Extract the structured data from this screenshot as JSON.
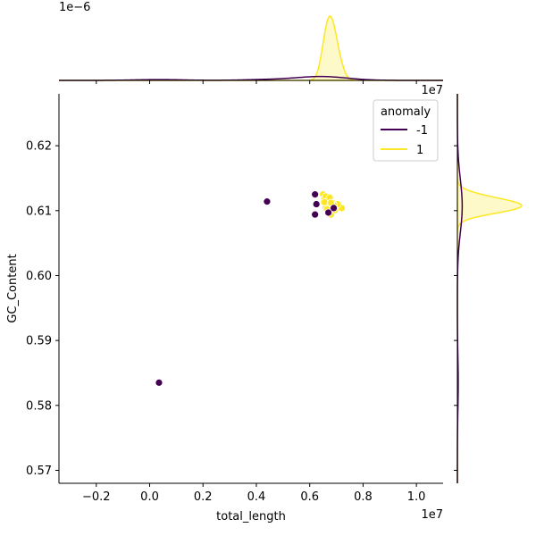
{
  "chart_data": {
    "type": "scatter",
    "title": "",
    "xlabel": "total_length",
    "ylabel": "GC_Content",
    "x_scale_label": "1e7",
    "y_scale_label": "0.62",
    "top_marginal_scale_label": "1e−6",
    "xlim": [
      -3400000,
      11000000
    ],
    "ylim": [
      0.568,
      0.628
    ],
    "x_ticks": [
      -2000000,
      0,
      2000000,
      4000000,
      6000000,
      8000000,
      10000000
    ],
    "x_tick_labels": [
      "−0.2",
      "0.0",
      "0.2",
      "0.4",
      "0.6",
      "0.8",
      "1.0"
    ],
    "y_ticks": [
      0.57,
      0.58,
      0.59,
      0.6,
      0.61,
      0.62
    ],
    "y_tick_labels": [
      "0.57",
      "0.58",
      "0.59",
      "0.60",
      "0.61",
      "0.62"
    ],
    "grid": false,
    "legend": {
      "title": "anomaly",
      "placement": "top-right",
      "entries": [
        {
          "label": "-1",
          "color": "#440154"
        },
        {
          "label": "1",
          "color": "#fde725"
        }
      ]
    },
    "series": [
      {
        "name": "-1",
        "color": "#440154",
        "x": [
          350000,
          4400000,
          6200000,
          6250000,
          6200000,
          6700000,
          6900000
        ],
        "y": [
          0.5835,
          0.6114,
          0.6125,
          0.611,
          0.6094,
          0.6097,
          0.6104
        ]
      },
      {
        "name": "1",
        "color": "#fde725",
        "x": [
          6500000,
          6550000,
          6600000,
          6650000,
          6700000,
          6750000,
          6800000,
          6850000,
          6900000,
          7000000,
          7100000,
          7200000,
          6600000,
          6700000,
          6800000,
          6950000,
          7050000,
          6550000,
          6750000,
          6850000,
          6900000,
          6650000,
          6800000
        ],
        "y": [
          0.6125,
          0.6118,
          0.6122,
          0.611,
          0.6115,
          0.6108,
          0.6105,
          0.6112,
          0.61,
          0.6103,
          0.6106,
          0.6104,
          0.6105,
          0.6098,
          0.6094,
          0.6101,
          0.611,
          0.6113,
          0.612,
          0.6106,
          0.6109,
          0.6102,
          0.6112
        ]
      }
    ]
  }
}
